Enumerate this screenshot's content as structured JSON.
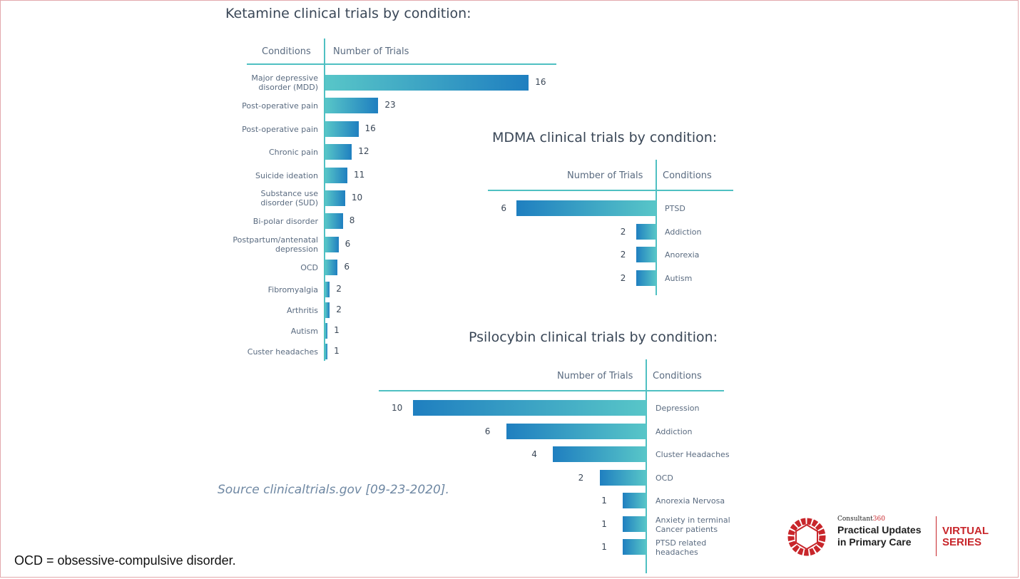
{
  "ketamine": {
    "title": "Ketamine clinical trials by condition:",
    "col_conditions": "Conditions",
    "col_trials": "Number of Trials"
  },
  "mdma": {
    "title": "MDMA clinical trials by condition:",
    "col_trials": "Number of Trials",
    "col_conditions": "Conditions"
  },
  "psilocybin": {
    "title": "Psilocybin clinical trials by condition:",
    "col_trials": "Number of Trials",
    "col_conditions": "Conditions"
  },
  "source": "Source clinicaltrials.gov [09-23-2020].",
  "footnote": "OCD = obsessive-compulsive disorder.",
  "logo": {
    "brand": "Consultant",
    "brand_num": "360",
    "line1": "Practical Updates",
    "line2": "in Primary Care",
    "virtual1": "VIRTUAL",
    "virtual2": "SERIES"
  },
  "colors": {
    "accent_teal": "#4fc0c2",
    "bar_blue": "#1f7fc0",
    "logo_red": "#c8262b"
  },
  "chart_data": [
    {
      "type": "bar",
      "orientation": "horizontal",
      "title": "Ketamine clinical trials by condition:",
      "categories": [
        "Major depressive\ndisorder (MDD)",
        "Post-operative pain",
        "Post-operative pain",
        "Chronic pain",
        "Suicide ideation",
        "Substance use\ndisorder (SUD)",
        "Bi-polar disorder",
        "Postpartum/antenatal\ndepression",
        "OCD",
        "Fibromyalgia",
        "Arthritis",
        "Autism",
        "Custer headaches"
      ],
      "values": [
        16,
        23,
        16,
        12,
        11,
        10,
        8,
        6,
        6,
        2,
        2,
        1,
        1
      ],
      "bar_lengths": [
        46,
        12,
        7.5,
        6,
        5,
        4.5,
        4,
        3,
        2.8,
        1,
        1,
        0.5,
        0.5
      ]
    },
    {
      "type": "bar",
      "orientation": "horizontal-reversed",
      "title": "MDMA clinical trials by condition:",
      "categories": [
        "PTSD",
        "Addiction",
        "Anorexia",
        "Autism"
      ],
      "values": [
        6,
        2,
        2,
        2
      ]
    },
    {
      "type": "bar",
      "orientation": "horizontal-reversed",
      "title": "Psilocybin clinical trials by condition:",
      "categories": [
        "Depression",
        "Addiction",
        "Cluster Headaches",
        "OCD",
        "Anorexia Nervosa",
        "Anxiety in terminal\nCancer patients",
        "PTSD related\nheadaches"
      ],
      "values": [
        10,
        6,
        4,
        2,
        1,
        1,
        1
      ]
    }
  ]
}
